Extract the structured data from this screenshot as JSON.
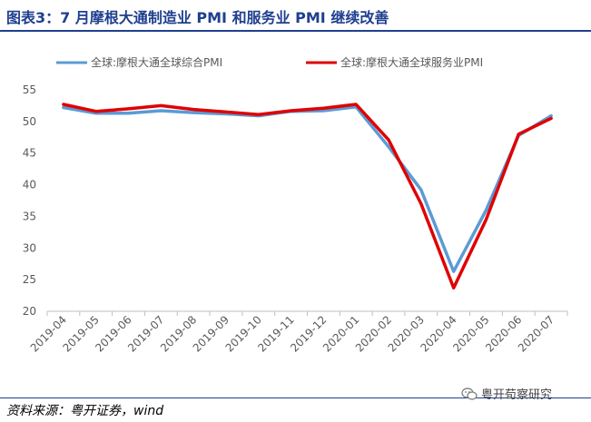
{
  "title": "图表3：7 月摩根大通制造业 PMI 和服务业 PMI 继续改善",
  "source": "资料来源：粤开证券，wind",
  "watermark": "粤开荀察研究",
  "chart_data": {
    "type": "line",
    "title": "",
    "xlabel": "",
    "ylabel": "",
    "ylim": [
      20,
      55
    ],
    "yticks": [
      20,
      25,
      30,
      35,
      40,
      45,
      50,
      55
    ],
    "grid": false,
    "legend_position": "top",
    "x": [
      "2019-04",
      "2019-05",
      "2019-06",
      "2019-07",
      "2019-08",
      "2019-09",
      "2019-10",
      "2019-11",
      "2019-12",
      "2020-01",
      "2020-02",
      "2020-03",
      "2020-04",
      "2020-05",
      "2020-06",
      "2020-07"
    ],
    "series": [
      {
        "name": "全球:摩根大通全球综合PMI",
        "color": "#5b9bd5",
        "values": [
          52.2,
          51.3,
          51.3,
          51.7,
          51.4,
          51.2,
          50.9,
          51.6,
          51.7,
          52.3,
          46.0,
          39.2,
          26.3,
          36.0,
          47.8,
          50.9
        ]
      },
      {
        "name": "全球:摩根大通全球服务业PMI",
        "color": "#e00000",
        "values": [
          52.7,
          51.6,
          52.0,
          52.5,
          51.9,
          51.5,
          51.1,
          51.7,
          52.1,
          52.7,
          47.1,
          37.0,
          23.7,
          34.5,
          48.0,
          50.5
        ]
      }
    ]
  }
}
